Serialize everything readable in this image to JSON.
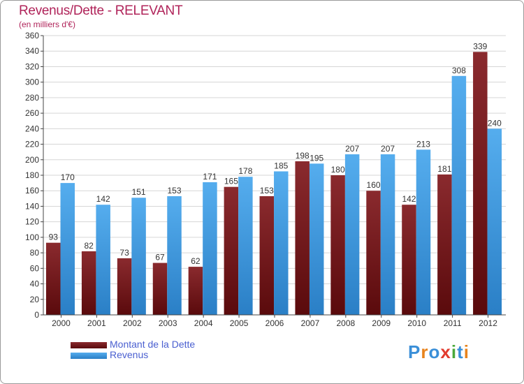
{
  "chart_data": {
    "type": "bar",
    "title": "Revenus/Dette - RELEVANT",
    "subtitle": "(en milliers d'€)",
    "categories": [
      "2000",
      "2001",
      "2002",
      "2003",
      "2004",
      "2005",
      "2006",
      "2007",
      "2008",
      "2009",
      "2010",
      "2011",
      "2012"
    ],
    "series": [
      {
        "name": "Montant de la Dette",
        "color": "#7a1a1d",
        "values": [
          93,
          82,
          73,
          67,
          62,
          165,
          153,
          198,
          180,
          160,
          142,
          181,
          339
        ]
      },
      {
        "name": "Revenus",
        "color": "#3f9ee5",
        "values": [
          170,
          142,
          151,
          153,
          171,
          178,
          185,
          195,
          207,
          207,
          213,
          308,
          240
        ]
      }
    ],
    "ylim": [
      0,
      360
    ],
    "yticks": [
      0,
      20,
      40,
      60,
      80,
      100,
      120,
      140,
      160,
      180,
      200,
      220,
      240,
      260,
      280,
      300,
      320,
      340,
      360
    ],
    "grid": true,
    "legend": "bottom-left"
  },
  "logo": {
    "text": "Proxiti",
    "letters": [
      "P",
      "r",
      "o",
      "x",
      "i",
      "t",
      "i"
    ],
    "colors": [
      "#3a8fd8",
      "#e8831c",
      "#3a8fd8",
      "#e23b2e",
      "#4aa83a",
      "#3a8fd8",
      "#e8831c"
    ]
  }
}
